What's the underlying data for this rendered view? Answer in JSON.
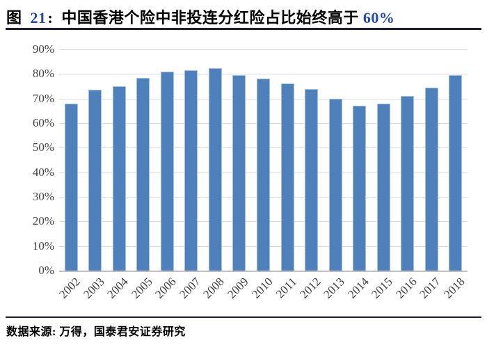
{
  "accent_color": "#2447a8",
  "header": {
    "fig_prefix": "图",
    "fig_number": "21",
    "fig_colon": ":",
    "title_main": "中国香港个险中非投连分红险占比始终高于",
    "title_highlight": "60%"
  },
  "chart_data": {
    "type": "bar",
    "title": "图 21: 中国香港个险中非投连分红险占比始终高于 60%",
    "categories": [
      "2002",
      "2003",
      "2004",
      "2005",
      "2006",
      "2007",
      "2008",
      "2009",
      "2010",
      "2011",
      "2012",
      "2013",
      "2014",
      "2015",
      "2016",
      "2017",
      "2018"
    ],
    "values": [
      68,
      73.5,
      75,
      78.5,
      81,
      81.5,
      82.5,
      79.5,
      78,
      76,
      74,
      70,
      67,
      68,
      71,
      74.5,
      79.5
    ],
    "xlabel": "",
    "ylabel": "",
    "ylim": [
      0,
      90
    ],
    "ytick_step": 10,
    "ytick_labels": [
      "0%",
      "10%",
      "20%",
      "30%",
      "40%",
      "50%",
      "60%",
      "70%",
      "80%",
      "90%"
    ],
    "grid": true,
    "legend": null,
    "bar_color": "#4e80bc",
    "gridline_color": "#d9d9d9",
    "axis_label_color": "#3f3f3f"
  },
  "footer": {
    "source": "数据来源: 万得，国泰君安证券研究"
  }
}
